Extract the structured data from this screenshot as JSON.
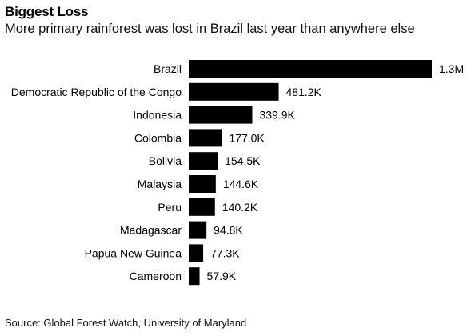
{
  "header": {
    "title": "Biggest Loss",
    "subtitle": "More primary rainforest was lost in Brazil last year than anywhere else"
  },
  "footer": {
    "source": "Source: Global Forest Watch, University of Maryland"
  },
  "colors": {
    "bar": "#000000",
    "background": "#ffffff"
  },
  "chart_data": {
    "type": "bar",
    "orientation": "horizontal",
    "title": "Biggest Loss",
    "subtitle": "More primary rainforest was lost in Brazil last year than anywhere else",
    "xlabel": "",
    "ylabel": "",
    "categories": [
      "Brazil",
      "Democratic Republic of the Congo",
      "Indonesia",
      "Colombia",
      "Bolivia",
      "Malaysia",
      "Peru",
      "Madagascar",
      "Papua New Guinea",
      "Cameroon"
    ],
    "values": [
      1300000,
      481200,
      339900,
      177000,
      154500,
      144600,
      140200,
      94800,
      77300,
      57900
    ],
    "data_labels": [
      "1.3M",
      "481.2K",
      "339.9K",
      "177.0K",
      "154.5K",
      "144.6K",
      "140.2K",
      "94.8K",
      "77.3K",
      "57.9K"
    ],
    "xlim": [
      0,
      1300000
    ],
    "grid": false,
    "legend": "none"
  }
}
